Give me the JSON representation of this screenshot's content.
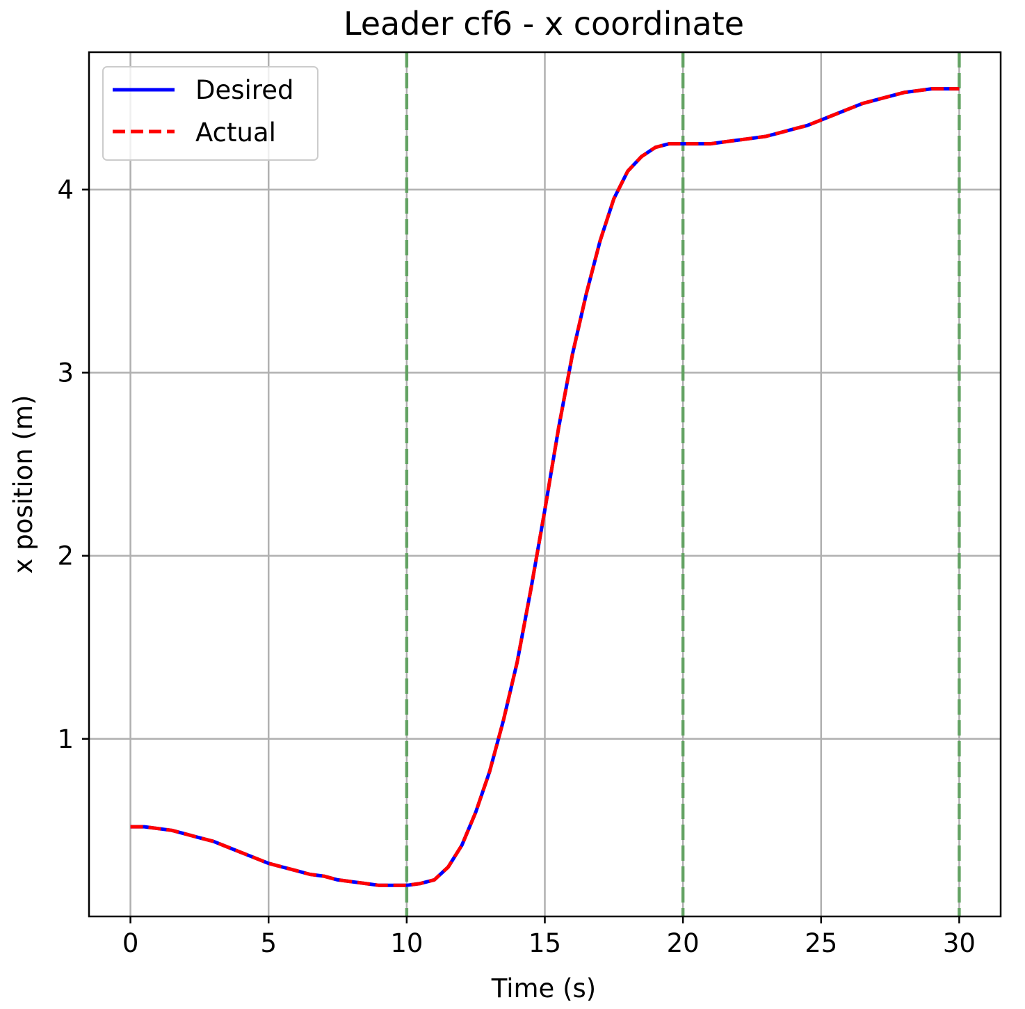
{
  "chart_data": {
    "type": "line",
    "title": "Leader cf6 - x coordinate",
    "xlabel": "Time (s)",
    "ylabel": "x position (m)",
    "xlim": [
      -1.5,
      31.5
    ],
    "ylim": [
      0.03,
      4.75
    ],
    "xticks": [
      0,
      5,
      10,
      15,
      20,
      25,
      30
    ],
    "yticks": [
      1,
      2,
      3,
      4
    ],
    "grid": true,
    "legend_position": "upper-left",
    "vlines": {
      "x": [
        10,
        20,
        30
      ],
      "color": "#5aa05a",
      "style": "dashed"
    },
    "series": [
      {
        "name": "Desired",
        "color": "#0000ff",
        "style": "solid",
        "x": [
          0,
          0.5,
          1,
          1.5,
          2,
          2.5,
          3,
          3.5,
          4,
          4.5,
          5,
          5.5,
          6,
          6.5,
          7,
          7.5,
          8,
          8.5,
          9,
          9.5,
          10,
          10.5,
          11,
          11.5,
          12,
          12.5,
          13,
          13.5,
          14,
          14.5,
          15,
          15.5,
          16,
          16.5,
          17,
          17.5,
          18,
          18.5,
          19,
          19.5,
          20,
          20.5,
          21,
          21.5,
          22,
          22.5,
          23,
          23.5,
          24,
          24.5,
          25,
          25.5,
          26,
          26.5,
          27,
          27.5,
          28,
          28.5,
          29,
          29.5,
          30
        ],
        "y": [
          0.52,
          0.52,
          0.51,
          0.5,
          0.48,
          0.46,
          0.44,
          0.41,
          0.38,
          0.35,
          0.32,
          0.3,
          0.28,
          0.26,
          0.25,
          0.23,
          0.22,
          0.21,
          0.2,
          0.2,
          0.2,
          0.21,
          0.23,
          0.3,
          0.42,
          0.6,
          0.82,
          1.1,
          1.42,
          1.82,
          2.25,
          2.7,
          3.1,
          3.43,
          3.72,
          3.95,
          4.1,
          4.18,
          4.23,
          4.25,
          4.25,
          4.25,
          4.25,
          4.26,
          4.27,
          4.28,
          4.29,
          4.31,
          4.33,
          4.35,
          4.38,
          4.41,
          4.44,
          4.47,
          4.49,
          4.51,
          4.53,
          4.54,
          4.55,
          4.55,
          4.55
        ]
      },
      {
        "name": "Actual",
        "color": "#ff0000",
        "style": "dashed",
        "x": [
          0,
          0.5,
          1,
          1.5,
          2,
          2.5,
          3,
          3.5,
          4,
          4.5,
          5,
          5.5,
          6,
          6.5,
          7,
          7.5,
          8,
          8.5,
          9,
          9.5,
          10,
          10.5,
          11,
          11.5,
          12,
          12.5,
          13,
          13.5,
          14,
          14.5,
          15,
          15.5,
          16,
          16.5,
          17,
          17.5,
          18,
          18.5,
          19,
          19.5,
          20,
          20.5,
          21,
          21.5,
          22,
          22.5,
          23,
          23.5,
          24,
          24.5,
          25,
          25.5,
          26,
          26.5,
          27,
          27.5,
          28,
          28.5,
          29,
          29.5,
          30
        ],
        "y": [
          0.52,
          0.52,
          0.51,
          0.5,
          0.48,
          0.46,
          0.44,
          0.41,
          0.38,
          0.35,
          0.32,
          0.3,
          0.28,
          0.26,
          0.25,
          0.23,
          0.22,
          0.21,
          0.2,
          0.2,
          0.2,
          0.21,
          0.23,
          0.3,
          0.42,
          0.6,
          0.82,
          1.1,
          1.42,
          1.82,
          2.25,
          2.7,
          3.1,
          3.43,
          3.72,
          3.95,
          4.1,
          4.18,
          4.23,
          4.25,
          4.25,
          4.25,
          4.25,
          4.26,
          4.27,
          4.28,
          4.29,
          4.31,
          4.33,
          4.35,
          4.38,
          4.41,
          4.44,
          4.47,
          4.49,
          4.51,
          4.53,
          4.54,
          4.55,
          4.55,
          4.55
        ]
      }
    ]
  }
}
